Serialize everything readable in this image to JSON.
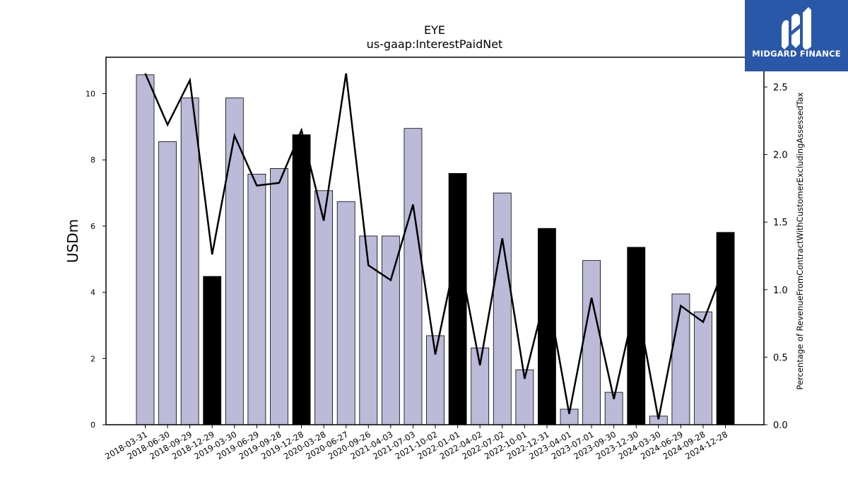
{
  "chart_data": {
    "type": "bar",
    "title": "EYE",
    "subtitle": "us-gaap:InterestPaidNet",
    "ylabel": "USDm",
    "y2label": "Percentage of RevenueFromContractWithCustomerExcludingAssessedTax",
    "ylim": [
      0,
      11.1
    ],
    "y2lim": [
      0,
      2.72
    ],
    "yticks": [
      0,
      2,
      4,
      6,
      8,
      10
    ],
    "y2ticks": [
      "0.0",
      "0.5",
      "1.0",
      "1.5",
      "2.0",
      "2.5"
    ],
    "grid": false,
    "categories": [
      "2018-03-31",
      "2018-06-30",
      "2018-09-29",
      "2018-12-29",
      "2019-03-30",
      "2019-06-29",
      "2019-09-28",
      "2019-12-28",
      "2020-03-28",
      "2020-06-27",
      "2020-09-26",
      "2021-04-03",
      "2021-07-03",
      "2021-10-02",
      "2022-01-01",
      "2022-04-02",
      "2022-07-02",
      "2022-10-01",
      "2022-12-31",
      "2023-04-01",
      "2023-07-01",
      "2023-09-30",
      "2023-12-30",
      "2024-03-30",
      "2024-06-29",
      "2024-09-28",
      "2024-12-28"
    ],
    "series": [
      {
        "kind": "bar",
        "values": [
          10.57,
          8.55,
          9.87,
          4.48,
          9.87,
          7.57,
          7.74,
          8.76,
          7.07,
          6.74,
          5.7,
          5.7,
          8.95,
          2.69,
          7.59,
          2.32,
          7.0,
          1.66,
          5.93,
          0.47,
          4.96,
          0.98,
          5.36,
          0.26,
          3.95,
          3.41,
          5.81
        ],
        "highlight": [
          false,
          false,
          false,
          true,
          false,
          false,
          false,
          true,
          false,
          false,
          false,
          false,
          false,
          false,
          true,
          false,
          false,
          false,
          true,
          false,
          false,
          false,
          true,
          false,
          false,
          false,
          true
        ],
        "color": "#bcbad9",
        "highlight_color": "#000000"
      },
      {
        "kind": "line",
        "axis": "right",
        "values": [
          2.6,
          2.22,
          2.55,
          1.26,
          2.14,
          1.77,
          1.79,
          2.18,
          1.51,
          2.6,
          1.18,
          1.07,
          1.63,
          0.52,
          1.31,
          0.44,
          1.38,
          0.34,
          1.0,
          0.08,
          0.94,
          0.19,
          0.93,
          0.04,
          0.88,
          0.76,
          1.19
        ],
        "color": "#000000"
      }
    ]
  },
  "logo": {
    "text": "MIDGARD FINANCE",
    "icon": "midgard-logo-icon",
    "background": "#2a58a8"
  }
}
